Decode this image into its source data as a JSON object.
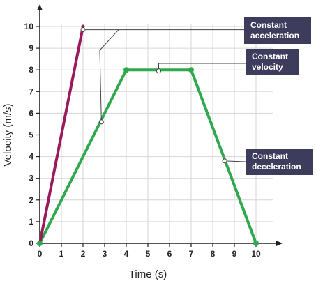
{
  "chart_data": {
    "type": "line",
    "xlabel": "Time (s)",
    "ylabel": "Velocity (m/s)",
    "xlim": [
      0,
      10
    ],
    "ylim": [
      0,
      10
    ],
    "x_ticks": [
      "0",
      "1",
      "2",
      "3",
      "4",
      "5",
      "6",
      "7",
      "8",
      "9",
      "10"
    ],
    "y_ticks": [
      "0",
      "1",
      "2",
      "3",
      "4",
      "5",
      "6",
      "7",
      "8",
      "9",
      "10"
    ],
    "grid": true,
    "series": [
      {
        "color": "#9b1a5a",
        "x": [
          0,
          2
        ],
        "y": [
          0,
          10
        ]
      },
      {
        "color": "#2fa84f",
        "x": [
          0,
          4,
          7,
          10
        ],
        "y": [
          0,
          8,
          8,
          0
        ]
      }
    ],
    "annotations": [
      {
        "lines": [
          "Constant",
          "acceleration"
        ],
        "x": 2,
        "y": 9.85
      },
      {
        "lines": [
          "Constant",
          "velocity"
        ],
        "x": 5.5,
        "y": 7.95
      },
      {
        "lines": [
          "Constant",
          "deceleration"
        ],
        "x": 8.55,
        "y": 3.8
      }
    ]
  }
}
